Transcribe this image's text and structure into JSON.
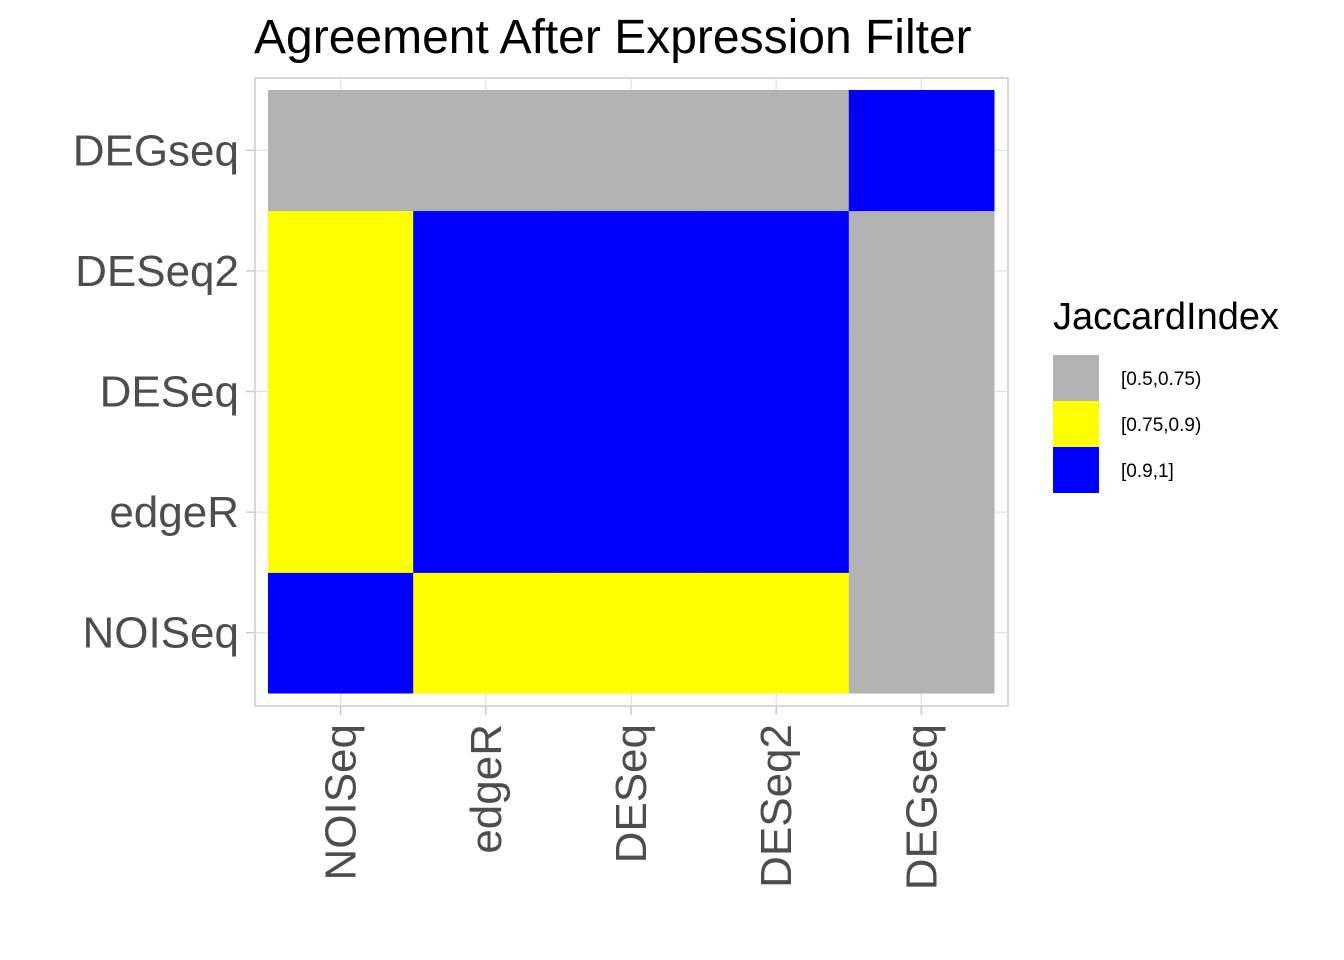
{
  "chart_data": {
    "type": "heatmap",
    "title": "Agreement After Expression Filter",
    "xlabel": "",
    "ylabel": "",
    "x": [
      "NOISeq",
      "edgeR",
      "DESeq",
      "DESeq2",
      "DEGseq"
    ],
    "y": [
      "NOISeq",
      "edgeR",
      "DESeq",
      "DESeq2",
      "DEGseq"
    ],
    "cells": [
      [
        "[0.9,1]",
        "[0.75,0.9)",
        "[0.75,0.9)",
        "[0.75,0.9)",
        "[0.5,0.75)"
      ],
      [
        "[0.75,0.9)",
        "[0.9,1]",
        "[0.9,1]",
        "[0.9,1]",
        "[0.5,0.75)"
      ],
      [
        "[0.75,0.9)",
        "[0.9,1]",
        "[0.9,1]",
        "[0.9,1]",
        "[0.5,0.75)"
      ],
      [
        "[0.75,0.9)",
        "[0.9,1]",
        "[0.9,1]",
        "[0.9,1]",
        "[0.5,0.75)"
      ],
      [
        "[0.5,0.75)",
        "[0.5,0.75)",
        "[0.5,0.75)",
        "[0.5,0.75)",
        "[0.9,1]"
      ]
    ],
    "legend": {
      "title": "JaccardIndex",
      "position": "right",
      "items": [
        {
          "label": "[0.5,0.75)",
          "color": "#b3b3b3"
        },
        {
          "label": "[0.75,0.9)",
          "color": "#ffff00"
        },
        {
          "label": "[0.9,1]",
          "color": "#0000ff"
        }
      ]
    },
    "grid": true
  }
}
